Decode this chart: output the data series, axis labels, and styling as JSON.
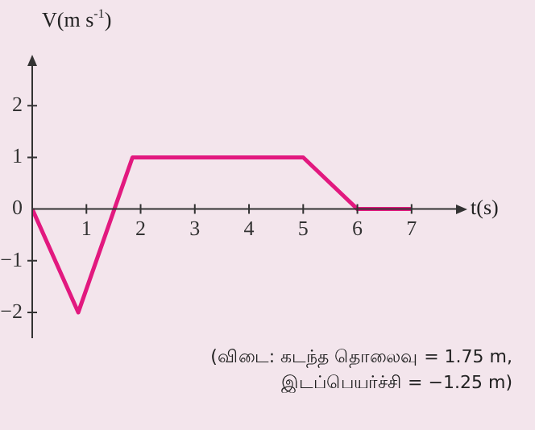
{
  "chart_data": {
    "type": "line",
    "xlabel": "t(s)",
    "ylabel": "V(m s$^{-1}$)",
    "x": [
      0,
      0.85,
      1.85,
      5,
      6,
      7
    ],
    "series": [
      {
        "color": "#e2197f",
        "values": [
          0,
          -2,
          1,
          1,
          0,
          0
        ]
      }
    ],
    "xlim": [
      0,
      7.85
    ],
    "ylim": [
      -2.5,
      2.8
    ],
    "xticks": [
      1,
      2,
      3,
      4,
      5,
      6,
      7
    ],
    "yticks": [
      {
        "value": -2,
        "label": "−2"
      },
      {
        "value": -1,
        "label": "−1"
      },
      0,
      1,
      2
    ],
    "grid": false,
    "legend": false,
    "marker": "none",
    "line_style": "solid",
    "annotations": [
      "(விடை: கடந்த தொலைவு = 1.75 m,",
      "இடப்பெயர்ச்சி = −1.25 m)"
    ]
  }
}
